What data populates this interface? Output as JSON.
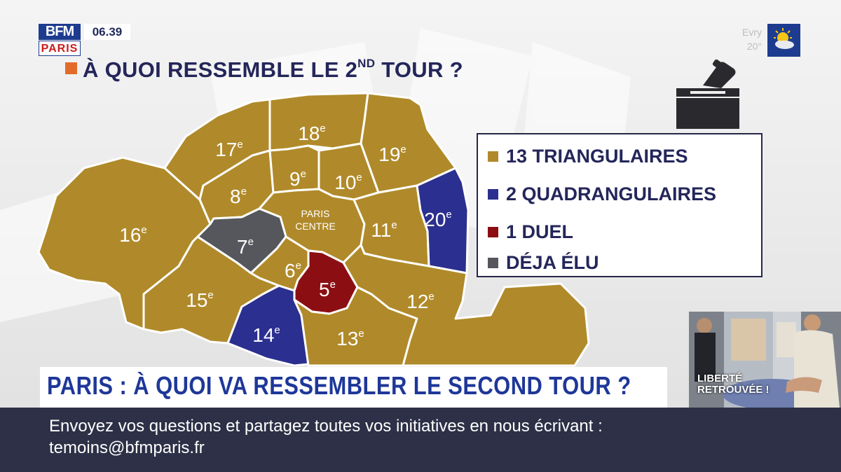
{
  "channel": {
    "logo_top": "BFM",
    "logo_bottom": "PARIS",
    "time": "06.39",
    "weather_city": "Evry",
    "weather_temp": "20°",
    "weather_icon": "sun-cloud-icon"
  },
  "title": {
    "prefix": "À QUOI RESSEMBLE LE 2",
    "sup": "ND",
    "suffix": " TOUR ?"
  },
  "colors": {
    "triangulaire": "#b08a2a",
    "quadrangulaire": "#2b2f8f",
    "duel": "#8b0f12",
    "deja_elu": "#56575d",
    "accent": "#e36b2a",
    "navy_text": "#24265a",
    "ticker_bg": "#2d3046"
  },
  "map": {
    "arrondissements": [
      {
        "id": "16",
        "label": "16",
        "sup": "e",
        "status": "triangulaire"
      },
      {
        "id": "17",
        "label": "17",
        "sup": "e",
        "status": "triangulaire"
      },
      {
        "id": "18",
        "label": "18",
        "sup": "e",
        "status": "triangulaire"
      },
      {
        "id": "19",
        "label": "19",
        "sup": "e",
        "status": "triangulaire"
      },
      {
        "id": "8",
        "label": "8",
        "sup": "e",
        "status": "triangulaire"
      },
      {
        "id": "9",
        "label": "9",
        "sup": "e",
        "status": "triangulaire"
      },
      {
        "id": "10",
        "label": "10",
        "sup": "e",
        "status": "triangulaire"
      },
      {
        "id": "centre",
        "label": "PARIS",
        "label2": "CENTRE",
        "status": "triangulaire"
      },
      {
        "id": "11",
        "label": "11",
        "sup": "e",
        "status": "triangulaire"
      },
      {
        "id": "20",
        "label": "20",
        "sup": "e",
        "status": "quadrangulaire"
      },
      {
        "id": "7",
        "label": "7",
        "sup": "e",
        "status": "deja_elu"
      },
      {
        "id": "6",
        "label": "6",
        "sup": "e",
        "status": "triangulaire"
      },
      {
        "id": "5",
        "label": "5",
        "sup": "e",
        "status": "duel"
      },
      {
        "id": "15",
        "label": "15",
        "sup": "e",
        "status": "triangulaire"
      },
      {
        "id": "14",
        "label": "14",
        "sup": "e",
        "status": "quadrangulaire"
      },
      {
        "id": "13",
        "label": "13",
        "sup": "e",
        "status": "triangulaire"
      },
      {
        "id": "12",
        "label": "12",
        "sup": "e",
        "status": "triangulaire"
      }
    ]
  },
  "legend": [
    {
      "key": "triangulaire",
      "text": "13 TRIANGULAIRES"
    },
    {
      "key": "quadrangulaire",
      "text": "2 QUADRANGULAIRES"
    },
    {
      "key": "duel",
      "text": "1 DUEL"
    },
    {
      "key": "deja_elu",
      "text": "DÉJA ÉLU"
    }
  ],
  "ballot_icon": "ballot-box-icon",
  "banner": {
    "text": "PARIS : À QUOI VA RESSEMBLER LE SECOND TOUR ?"
  },
  "thumbnail": {
    "line1": "LIBERTÉ",
    "line2": "RETROUVÉE !"
  },
  "ticker": {
    "line1": "Envoyez vos questions et partagez toutes vos initiatives en nous écrivant :",
    "line2": "temoins@bfmparis.fr"
  }
}
